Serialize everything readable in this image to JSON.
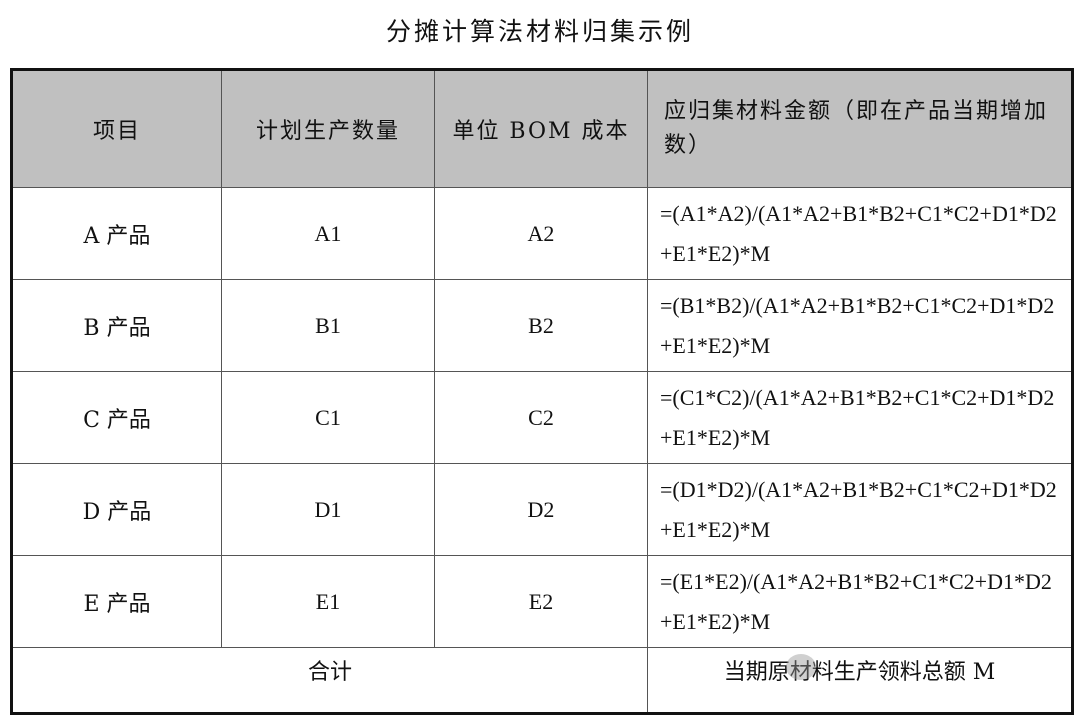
{
  "title": "分摊计算法材料归集示例",
  "headers": [
    "项目",
    "计划生产数量",
    "单位 BOM 成本",
    "应归集材料金额（即在产品当期增加数）"
  ],
  "rows": [
    {
      "item": "A 产品",
      "qty": "A1",
      "cost": "A2",
      "formula": "=(A1*A2)/(A1*A2+B1*B2+C1*C2+D1*D2+E1*E2)*M"
    },
    {
      "item": "B 产品",
      "qty": "B1",
      "cost": "B2",
      "formula": "=(B1*B2)/(A1*A2+B1*B2+C1*C2+D1*D2+E1*E2)*M"
    },
    {
      "item": "C 产品",
      "qty": "C1",
      "cost": "C2",
      "formula": "=(C1*C2)/(A1*A2+B1*B2+C1*C2+D1*D2+E1*E2)*M"
    },
    {
      "item": "D 产品",
      "qty": "D1",
      "cost": "D2",
      "formula": "=(D1*D2)/(A1*A2+B1*B2+C1*C2+D1*D2+E1*E2)*M"
    },
    {
      "item": "E 产品",
      "qty": "E1",
      "cost": "E2",
      "formula": "=(E1*E2)/(A1*A2+B1*B2+C1*C2+D1*D2+E1*E2)*M"
    }
  ],
  "total": {
    "label": "合计",
    "value": "当期原材料生产领料总额 M"
  }
}
